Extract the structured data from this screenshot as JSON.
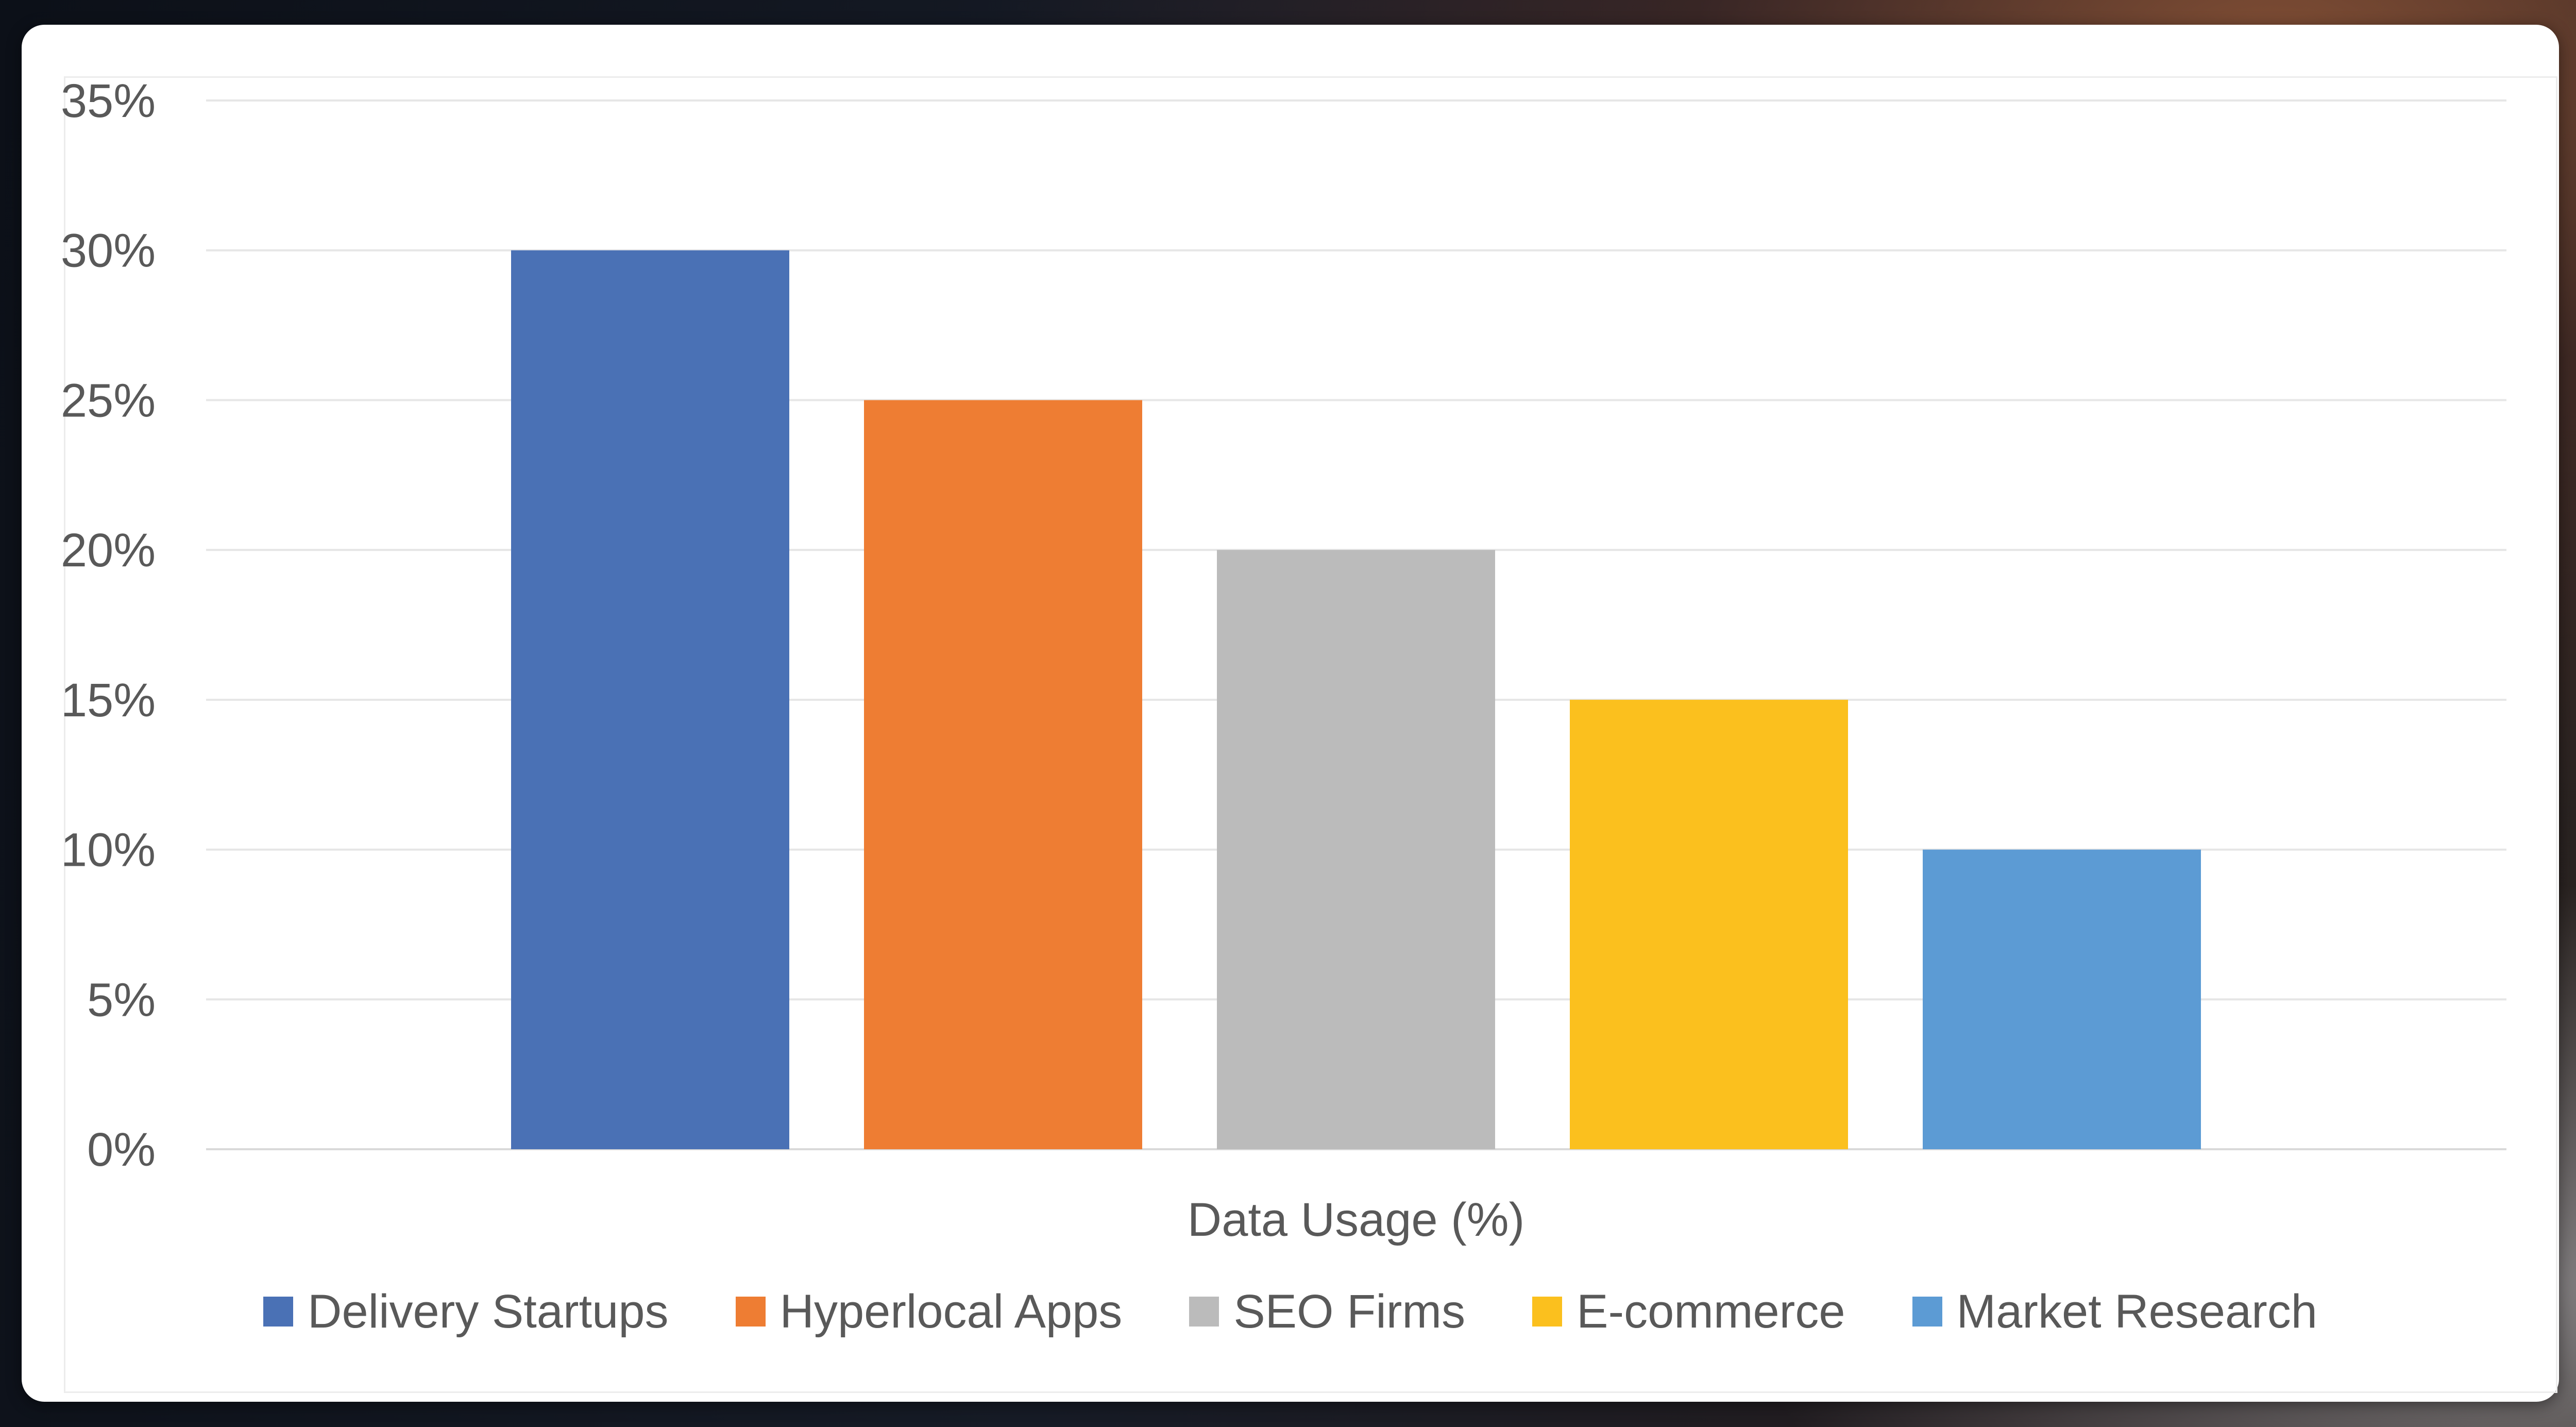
{
  "chart_data": {
    "type": "bar",
    "categories": [
      "Delivery Startups",
      "Hyperlocal Apps",
      "SEO Firms",
      "E-commerce",
      "Market Research"
    ],
    "values": [
      30,
      25,
      20,
      15,
      10
    ],
    "colors": [
      "#4a71b5",
      "#ee7d33",
      "#bbbbbb",
      "#fbc01e",
      "#5c9bd4"
    ],
    "title": "",
    "xlabel": "Data Usage (%)",
    "ylabel": "",
    "ylim": [
      0,
      35
    ],
    "yticks": [
      0,
      5,
      10,
      15,
      20,
      25,
      30,
      35
    ],
    "ytick_labels": [
      "0%",
      "5%",
      "10%",
      "15%",
      "20%",
      "25%",
      "30%",
      "35%"
    ],
    "grid": true,
    "legend_position": "bottom"
  }
}
